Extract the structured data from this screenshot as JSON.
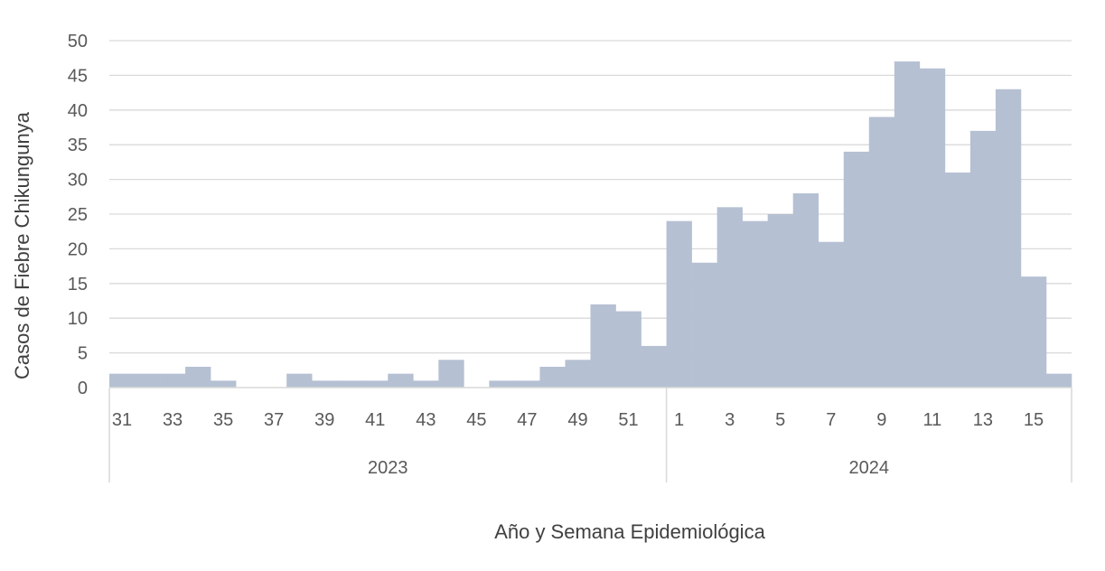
{
  "chart_data": {
    "type": "bar",
    "title": "",
    "xlabel": "Año y Semana Epidemiológica",
    "ylabel": "Casos de Fiebre Chikungunya",
    "ylim": [
      0,
      50
    ],
    "yticks": [
      0,
      5,
      10,
      15,
      20,
      25,
      30,
      35,
      40,
      45,
      50
    ],
    "grid": true,
    "bar_color": "#b6c0d3",
    "groups": [
      {
        "label": "2023",
        "weeks": [
          31,
          32,
          33,
          34,
          35,
          36,
          37,
          38,
          39,
          40,
          41,
          42,
          43,
          44,
          45,
          46,
          47,
          48,
          49,
          50,
          51,
          52
        ],
        "values": [
          2,
          2,
          2,
          3,
          1,
          0,
          0,
          2,
          1,
          1,
          1,
          2,
          1,
          4,
          0,
          1,
          1,
          3,
          4,
          12,
          11,
          6
        ],
        "tick_labels": [
          "31",
          "33",
          "35",
          "37",
          "39",
          "41",
          "43",
          "45",
          "47",
          "49",
          "51"
        ]
      },
      {
        "label": "2024",
        "weeks": [
          1,
          2,
          3,
          4,
          5,
          6,
          7,
          8,
          9,
          10,
          11,
          12,
          13,
          14,
          15,
          16
        ],
        "values": [
          24,
          18,
          26,
          24,
          25,
          28,
          21,
          34,
          39,
          47,
          46,
          31,
          37,
          43,
          16,
          2
        ],
        "tick_labels": [
          "1",
          "3",
          "5",
          "7",
          "9",
          "11",
          "13",
          "15"
        ]
      }
    ]
  }
}
